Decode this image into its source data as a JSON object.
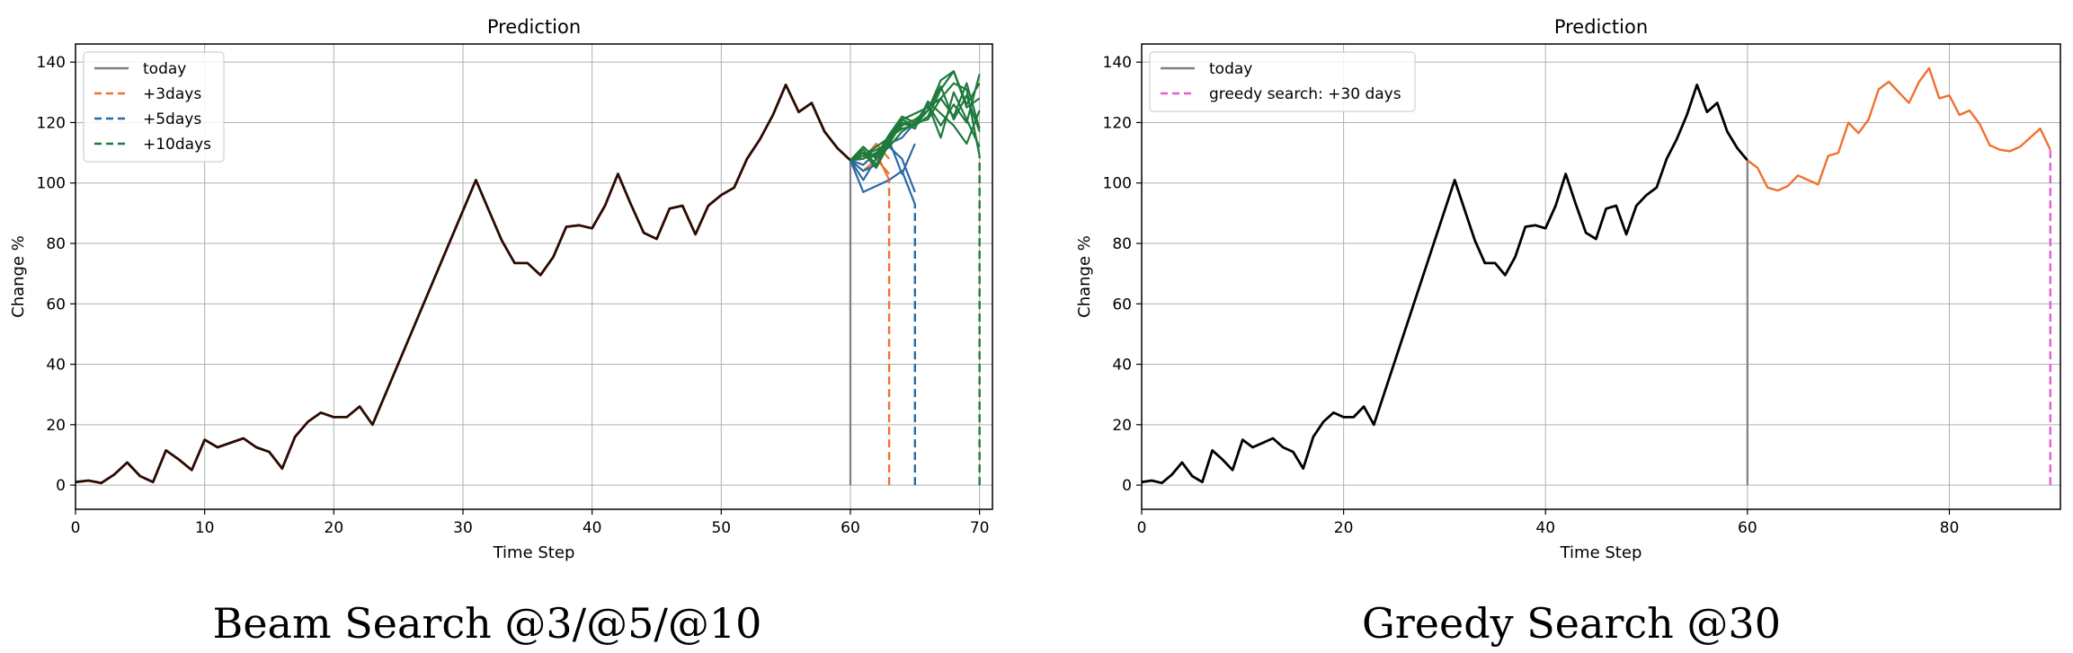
{
  "chart_data": [
    {
      "type": "line",
      "title": "Prediction",
      "xlabel": "Time Step",
      "ylabel": "Change %",
      "xlim": [
        0,
        71
      ],
      "ylim": [
        -8,
        146
      ],
      "xticks": [
        0,
        10,
        20,
        30,
        40,
        50,
        60,
        70
      ],
      "yticks": [
        0,
        20,
        40,
        60,
        80,
        100,
        120,
        140
      ],
      "grid": true,
      "legend_position": "top-left",
      "legend": [
        {
          "label": "today",
          "color": "#808080",
          "dash": "solid"
        },
        {
          "label": "+3days",
          "color": "#f07130",
          "dash": "dashed"
        },
        {
          "label": "+5days",
          "color": "#2a6aa4",
          "dash": "dashed"
        },
        {
          "label": "+10days",
          "color": "#1f7a3c",
          "dash": "dashed"
        }
      ],
      "history": {
        "x": [
          0,
          1,
          2,
          3,
          4,
          5,
          6,
          7,
          8,
          9,
          10,
          11,
          12,
          13,
          14,
          15,
          16,
          17,
          18,
          19,
          20,
          21,
          22,
          23,
          31,
          32,
          33,
          34,
          35,
          36,
          37,
          38,
          39,
          40,
          41,
          42,
          43,
          44,
          45,
          46,
          47,
          48,
          49,
          50,
          51,
          52,
          53,
          54,
          55,
          56,
          57,
          58,
          59,
          60
        ],
        "y": [
          1,
          1.5,
          0.7,
          3.5,
          7.5,
          3,
          1,
          11.5,
          8.5,
          5,
          15,
          12.5,
          14,
          15.5,
          12.5,
          11,
          5.5,
          16,
          21,
          24,
          22.5,
          22.5,
          26,
          20,
          101,
          91,
          81,
          73.5,
          73.5,
          69.5,
          75.5,
          85.5,
          86,
          85,
          92.5,
          103,
          93,
          83.5,
          81.5,
          91.5,
          92.5,
          83,
          92.5,
          96,
          98.5,
          108,
          114.5,
          122.5,
          132.5,
          123.5,
          126.5,
          117,
          111.5,
          107.5
        ],
        "color": "#2b0a00"
      },
      "today_x": 60,
      "horizons": [
        {
          "label": "+3days",
          "x": 63,
          "color": "#f07130"
        },
        {
          "label": "+5days",
          "x": 65,
          "color": "#2a6aa4"
        },
        {
          "label": "+10days",
          "x": 70,
          "color": "#1f7a3c"
        }
      ],
      "beams": [
        {
          "color": "#f07130",
          "x": [
            60,
            61,
            62,
            63
          ],
          "y": [
            107.5,
            104,
            108,
            103
          ]
        },
        {
          "color": "#f07130",
          "x": [
            60,
            61,
            62,
            63
          ],
          "y": [
            107.5,
            108,
            113,
            108
          ]
        },
        {
          "color": "#f07130",
          "x": [
            60,
            61,
            62,
            63
          ],
          "y": [
            107.5,
            106,
            110,
            101
          ]
        },
        {
          "color": "#2a6aa4",
          "x": [
            60,
            61,
            62,
            63,
            64,
            65
          ],
          "y": [
            107.5,
            97,
            99,
            101,
            104,
            93
          ]
        },
        {
          "color": "#2a6aa4",
          "x": [
            60,
            61,
            62,
            63,
            64,
            65
          ],
          "y": [
            107.5,
            104,
            106,
            113,
            115,
            120
          ]
        },
        {
          "color": "#2a6aa4",
          "x": [
            60,
            61,
            62,
            63,
            64,
            65
          ],
          "y": [
            107.5,
            106,
            110,
            114,
            103,
            113
          ]
        },
        {
          "color": "#2a6aa4",
          "x": [
            60,
            61,
            62,
            63,
            64,
            65
          ],
          "y": [
            107.5,
            101,
            108,
            112,
            108,
            97
          ]
        },
        {
          "color": "#1f7a3c",
          "x": [
            60,
            61,
            62,
            63,
            64,
            65,
            66,
            67,
            68,
            69,
            70
          ],
          "y": [
            107.5,
            112,
            108,
            115,
            121,
            119,
            124,
            134,
            137,
            126,
            133
          ]
        },
        {
          "color": "#1f7a3c",
          "x": [
            60,
            61,
            62,
            63,
            64,
            65,
            66,
            67,
            68,
            69,
            70
          ],
          "y": [
            107.5,
            110,
            105,
            113,
            120,
            119,
            126,
            115,
            130,
            121,
            112
          ]
        },
        {
          "color": "#1f7a3c",
          "x": [
            60,
            61,
            62,
            63,
            64,
            65,
            66,
            67,
            68,
            69,
            70
          ],
          "y": [
            107.5,
            108,
            110,
            112,
            117,
            120,
            121,
            128,
            122,
            133,
            118
          ]
        },
        {
          "color": "#1f7a3c",
          "x": [
            60,
            61,
            62,
            63,
            64,
            65,
            66,
            67,
            68,
            69,
            70
          ],
          "y": [
            107.5,
            109,
            112,
            115,
            118,
            119,
            122,
            131,
            137,
            125,
            128
          ]
        },
        {
          "color": "#1f7a3c",
          "x": [
            60,
            61,
            62,
            63,
            64,
            65,
            66,
            67,
            68,
            69,
            70
          ],
          "y": [
            107.5,
            111,
            106,
            114,
            120,
            118,
            127,
            123,
            119,
            113,
            124
          ]
        },
        {
          "color": "#1f7a3c",
          "x": [
            60,
            61,
            62,
            63,
            64,
            65,
            66,
            67,
            68,
            69,
            70
          ],
          "y": [
            107.5,
            109,
            111,
            113,
            121,
            123,
            125,
            128,
            133,
            131,
            109
          ]
        },
        {
          "color": "#1f7a3c",
          "x": [
            60,
            61,
            62,
            63,
            64,
            65,
            66,
            67,
            68,
            69,
            70
          ],
          "y": [
            107.5,
            110,
            109,
            116,
            122,
            120,
            126,
            119,
            126,
            120,
            136
          ]
        },
        {
          "color": "#1f7a3c",
          "x": [
            60,
            61,
            62,
            63,
            64,
            65,
            66,
            67,
            68,
            69,
            70
          ],
          "y": [
            107.5,
            112,
            108,
            114,
            119,
            121,
            124,
            132,
            121,
            129,
            117
          ]
        }
      ],
      "caption": "Beam Search @3/@5/@10"
    },
    {
      "type": "line",
      "title": "Prediction",
      "xlabel": "Time Step",
      "ylabel": "Change %",
      "xlim": [
        0,
        91
      ],
      "ylim": [
        -8,
        146
      ],
      "xticks": [
        0,
        20,
        40,
        60,
        80
      ],
      "yticks": [
        0,
        20,
        40,
        60,
        80,
        100,
        120,
        140
      ],
      "grid": true,
      "legend_position": "top-left",
      "legend": [
        {
          "label": "today",
          "color": "#808080",
          "dash": "solid"
        },
        {
          "label": "greedy search: +30 days",
          "color": "#e45fcf",
          "dash": "dashed"
        }
      ],
      "history": {
        "x": [
          0,
          1,
          2,
          3,
          4,
          5,
          6,
          7,
          8,
          9,
          10,
          11,
          12,
          13,
          14,
          15,
          16,
          17,
          18,
          19,
          20,
          21,
          22,
          23,
          31,
          32,
          33,
          34,
          35,
          36,
          37,
          38,
          39,
          40,
          41,
          42,
          43,
          44,
          45,
          46,
          47,
          48,
          49,
          50,
          51,
          52,
          53,
          54,
          55,
          56,
          57,
          58,
          59,
          60
        ],
        "y": [
          1,
          1.5,
          0.7,
          3.5,
          7.5,
          3,
          1,
          11.5,
          8.5,
          5,
          15,
          12.5,
          14,
          15.5,
          12.5,
          11,
          5.5,
          16,
          21,
          24,
          22.5,
          22.5,
          26,
          20,
          101,
          91,
          81,
          73.5,
          73.5,
          69.5,
          75.5,
          85.5,
          86,
          85,
          92.5,
          103,
          93,
          83.5,
          81.5,
          91.5,
          92.5,
          83,
          92.5,
          96,
          98.5,
          108,
          114.5,
          122.5,
          132.5,
          123.5,
          126.5,
          117,
          111.5,
          107.5
        ],
        "color": "#000000"
      },
      "today_x": 60,
      "horizons": [
        {
          "label": "greedy search: +30 days",
          "x": 90,
          "color": "#e45fcf"
        }
      ],
      "forecast": {
        "color": "#f07130",
        "x": [
          60,
          61,
          62,
          63,
          64,
          65,
          66,
          67,
          68,
          69,
          70,
          71,
          72,
          73,
          74,
          75,
          76,
          77,
          78,
          79,
          80,
          81,
          82,
          83,
          84,
          85,
          86,
          87,
          88,
          89,
          90
        ],
        "y": [
          107.5,
          105,
          98.5,
          97.5,
          99,
          102.5,
          101,
          99.5,
          109,
          110,
          120,
          116.5,
          121,
          131,
          133.5,
          130,
          126.5,
          133.5,
          138,
          128,
          129,
          122.5,
          124,
          119.5,
          112.5,
          111,
          110.5,
          112,
          115,
          118,
          111
        ]
      },
      "caption": "Greedy Search @30"
    }
  ]
}
